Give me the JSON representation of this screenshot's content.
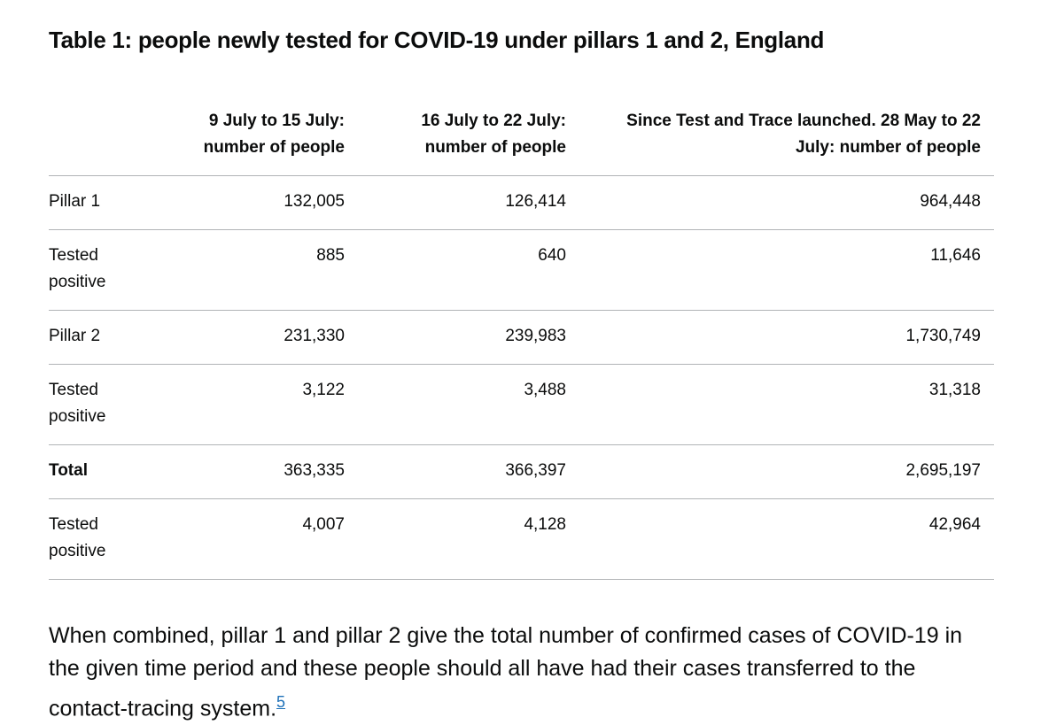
{
  "title": "Table 1: people newly tested for COVID-19 under pillars 1 and 2, England",
  "table": {
    "headers": [
      "",
      "9 July to 15 July: number of people",
      "16 July to 22 July: number of people",
      "Since Test and Trace launched. 28 May to 22 July: number of people"
    ],
    "rows": [
      {
        "label": "Pillar 1",
        "v1": "132,005",
        "v2": "126,414",
        "v3": "964,448"
      },
      {
        "label": "Tested positive",
        "v1": "885",
        "v2": "640",
        "v3": "11,646"
      },
      {
        "label": "Pillar 2",
        "v1": "231,330",
        "v2": "239,983",
        "v3": "1,730,749"
      },
      {
        "label": "Tested positive",
        "v1": "3,122",
        "v2": "3,488",
        "v3": "31,318"
      },
      {
        "label": "Total",
        "v1": "363,335",
        "v2": "366,397",
        "v3": "2,695,197"
      },
      {
        "label": "Tested positive",
        "v1": "4,007",
        "v2": "4,128",
        "v3": "42,964"
      }
    ]
  },
  "note": {
    "text": "When combined, pillar 1 and pillar 2 give the total number of confirmed cases of COVID-19 in the given time period and these people should all have had their cases transferred to the contact-tracing system.",
    "footnote": "5",
    "link_color": "#1d70b8"
  }
}
